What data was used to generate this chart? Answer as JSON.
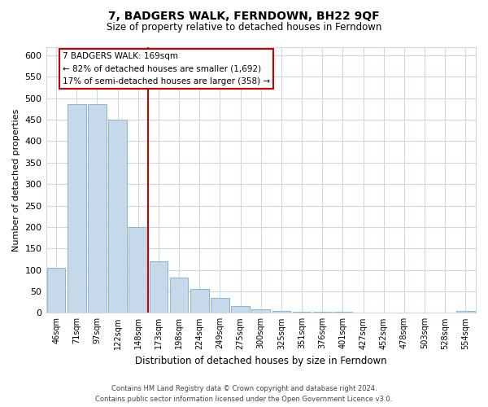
{
  "title": "7, BADGERS WALK, FERNDOWN, BH22 9QF",
  "subtitle": "Size of property relative to detached houses in Ferndown",
  "xlabel": "Distribution of detached houses by size in Ferndown",
  "ylabel": "Number of detached properties",
  "bar_labels": [
    "46sqm",
    "71sqm",
    "97sqm",
    "122sqm",
    "148sqm",
    "173sqm",
    "198sqm",
    "224sqm",
    "249sqm",
    "275sqm",
    "300sqm",
    "325sqm",
    "351sqm",
    "376sqm",
    "401sqm",
    "427sqm",
    "452sqm",
    "478sqm",
    "503sqm",
    "528sqm",
    "554sqm"
  ],
  "bar_values": [
    105,
    487,
    487,
    450,
    200,
    120,
    82,
    56,
    35,
    15,
    8,
    5,
    3,
    2,
    2,
    1,
    0,
    0,
    0,
    0,
    4
  ],
  "bar_color": "#c5d9ea",
  "bar_edge_color": "#89b4d0",
  "vline_color": "#cc0000",
  "annotation_title": "7 BADGERS WALK: 169sqm",
  "annotation_line1": "← 82% of detached houses are smaller (1,692)",
  "annotation_line2": "17% of semi-detached houses are larger (358) →",
  "annotation_box_color": "#ffffff",
  "annotation_box_edge": "#cc0000",
  "ylim": [
    0,
    620
  ],
  "yticks": [
    0,
    50,
    100,
    150,
    200,
    250,
    300,
    350,
    400,
    450,
    500,
    550,
    600
  ],
  "footer_line1": "Contains HM Land Registry data © Crown copyright and database right 2024.",
  "footer_line2": "Contains public sector information licensed under the Open Government Licence v3.0.",
  "background_color": "#ffffff",
  "grid_color": "#c8d8e8"
}
